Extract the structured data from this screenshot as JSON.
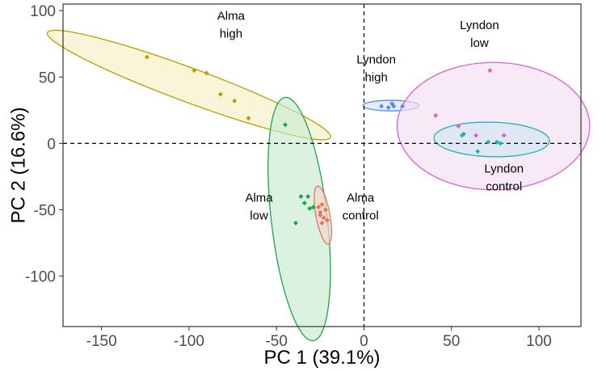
{
  "chart_data": {
    "type": "scatter",
    "xlabel": "PC 1 (39.1%)",
    "ylabel": "PC 2 (16.6%)",
    "xlim": [
      -172,
      124
    ],
    "ylim": [
      -138,
      105
    ],
    "xticks": [
      -150,
      -100,
      -50,
      0,
      50,
      100
    ],
    "yticks": [
      -100,
      -50,
      0,
      50,
      100
    ],
    "grid": false,
    "reference_lines": {
      "x": 0,
      "y": 0,
      "style": "dashed"
    },
    "groups": [
      {
        "name": "Alma high",
        "label_lines": [
          "Alma",
          "high"
        ],
        "color": "#B8A000",
        "fill": "#F5EFC5",
        "points": [
          [
            -124,
            65
          ],
          [
            -97,
            55
          ],
          [
            -90,
            53
          ],
          [
            -82,
            37
          ],
          [
            -74,
            32
          ],
          [
            -66,
            19
          ]
        ],
        "ellipse": {
          "cx": -100,
          "cy": 44,
          "rx": 90,
          "ry": 12,
          "angle": -26
        },
        "label_at": [
          -76,
          87
        ]
      },
      {
        "name": "Alma low",
        "label_lines": [
          "Alma",
          "low"
        ],
        "color": "#1AA84A",
        "fill": "#C9EBCF",
        "points": [
          [
            -45,
            14
          ],
          [
            -36,
            -40
          ],
          [
            -34,
            -45
          ],
          [
            -32,
            -40
          ],
          [
            -31,
            -49
          ],
          [
            -39,
            -60
          ],
          [
            -29,
            -48
          ]
        ],
        "ellipse": {
          "cx": -37,
          "cy": -57,
          "rx": 92,
          "ry": 16,
          "angle": -85
        },
        "label_at": [
          -60,
          -50
        ]
      },
      {
        "name": "Alma control",
        "label_lines": [
          "Alma",
          "control"
        ],
        "color": "#E8735A",
        "fill": "#F2D5CA",
        "points": [
          [
            -26,
            -48
          ],
          [
            -24,
            -46
          ],
          [
            -25,
            -52
          ],
          [
            -23,
            -56
          ],
          [
            -22,
            -50
          ],
          [
            -24,
            -60
          ],
          [
            -21,
            -58
          ],
          [
            -25,
            -54
          ]
        ],
        "ellipse": {
          "cx": -23.5,
          "cy": -54,
          "rx": 22,
          "ry": 4,
          "angle": -82
        },
        "label_at": [
          -2,
          -50
        ]
      },
      {
        "name": "Lyndon high",
        "label_lines": [
          "Lyndon",
          "high"
        ],
        "color": "#5B8DE8",
        "fill": "#D7E3F7",
        "points": [
          [
            10,
            28
          ],
          [
            14,
            27
          ],
          [
            16,
            30
          ],
          [
            17,
            28
          ],
          [
            22,
            28
          ]
        ],
        "ellipse": {
          "cx": 15.5,
          "cy": 28.5,
          "rx": 16,
          "ry": 4,
          "angle": 0
        },
        "label_at": [
          7,
          54
        ]
      },
      {
        "name": "Lyndon low",
        "label_lines": [
          "Lyndon",
          "low"
        ],
        "color": "#E060CF",
        "fill": "#F5DDF2",
        "points": [
          [
            72,
            55
          ],
          [
            41,
            21
          ],
          [
            54,
            13
          ],
          [
            64,
            6
          ],
          [
            80,
            6
          ]
        ],
        "ellipse": {
          "cx": 74,
          "cy": 13,
          "rx": 55,
          "ry": 48,
          "angle": 0
        },
        "label_at": [
          66,
          80
        ]
      },
      {
        "name": "Lyndon control",
        "label_lines": [
          "Lyndon",
          "control"
        ],
        "color": "#1FB4B4",
        "fill": "#D2E6F2",
        "points": [
          [
            56,
            6
          ],
          [
            57,
            7
          ],
          [
            65,
            -6
          ],
          [
            71,
            1
          ],
          [
            76,
            1
          ],
          [
            78,
            0
          ]
        ],
        "ellipse": {
          "cx": 73,
          "cy": 3,
          "rx": 33,
          "ry": 13,
          "angle": -2
        },
        "label_at": [
          80,
          -28
        ]
      }
    ]
  }
}
